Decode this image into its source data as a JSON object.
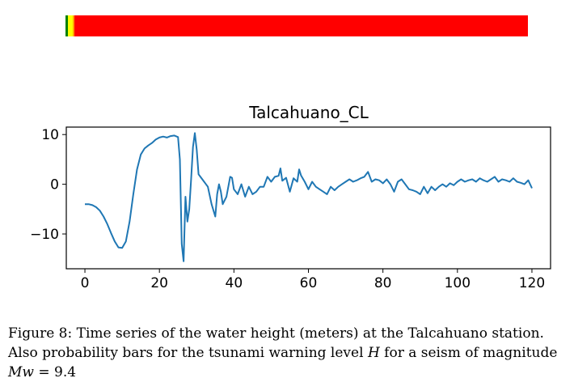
{
  "probability_bar": {
    "segments": [
      {
        "level": "green",
        "fraction": 0.006,
        "color": "#008000"
      },
      {
        "level": "yellow",
        "fraction": 0.01,
        "color": "#ffff00"
      },
      {
        "level": "orange",
        "fraction": 0.004,
        "color": "#ffa500"
      },
      {
        "level": "red",
        "fraction": 0.98,
        "color": "#ff0000"
      }
    ]
  },
  "chart_data": {
    "type": "line",
    "title": "Talcahuano_CL",
    "xlabel": "",
    "ylabel": "",
    "xlim": [
      -5,
      125
    ],
    "ylim": [
      -17,
      11.5
    ],
    "xticks": [
      0,
      20,
      40,
      60,
      80,
      100,
      120
    ],
    "yticks": [
      10,
      0,
      -10
    ],
    "ytick_labels": [
      "10",
      "0",
      "−10"
    ],
    "grid": false,
    "line_color": "#1f77b4",
    "series": [
      {
        "name": "water height",
        "x": [
          0,
          1,
          2,
          3,
          4,
          5,
          6,
          7,
          8,
          9,
          10,
          11,
          12,
          13,
          14,
          15,
          16,
          17,
          18,
          19,
          20,
          21,
          22,
          23,
          24,
          25,
          25.5,
          26,
          26.5,
          27,
          27.5,
          28,
          28.5,
          29,
          29.5,
          30,
          30.5,
          31,
          32,
          33,
          34,
          35,
          35.5,
          36,
          36.5,
          37,
          38,
          39,
          39.5,
          40,
          41,
          42,
          43,
          44,
          45,
          46,
          47,
          48,
          49,
          50,
          51,
          52,
          52.5,
          53,
          54,
          55,
          56,
          57,
          57.5,
          58,
          59,
          60,
          61,
          62,
          63,
          64,
          65,
          66,
          67,
          68,
          69,
          70,
          71,
          72,
          73,
          74,
          75,
          76,
          77,
          78,
          79,
          80,
          81,
          82,
          83,
          84,
          85,
          86,
          87,
          88,
          89,
          90,
          91,
          92,
          93,
          94,
          95,
          96,
          97,
          98,
          99,
          100,
          101,
          102,
          103,
          104,
          105,
          106,
          107,
          108,
          109,
          110,
          111,
          112,
          113,
          114,
          115,
          116,
          117,
          118,
          119,
          120
        ],
        "y": [
          -4,
          -4,
          -4.2,
          -4.6,
          -5.3,
          -6.5,
          -8,
          -9.8,
          -11.5,
          -12.7,
          -12.8,
          -11.5,
          -7.5,
          -2,
          3,
          6,
          7.2,
          7.8,
          8.3,
          9,
          9.4,
          9.6,
          9.4,
          9.7,
          9.8,
          9.5,
          5,
          -12,
          -15.5,
          -2.5,
          -7.5,
          -5,
          1,
          7.5,
          10.3,
          7,
          2,
          1.5,
          0.5,
          -0.5,
          -4,
          -6.5,
          -2,
          0,
          -1.5,
          -4,
          -2.5,
          1.5,
          1.3,
          -1,
          -2,
          0,
          -2.5,
          -0.5,
          -2,
          -1.5,
          -0.5,
          -0.5,
          1.5,
          0.5,
          1.5,
          1.7,
          3.2,
          0.7,
          1.3,
          -1.5,
          1.2,
          0.5,
          3,
          1.8,
          0.5,
          -1,
          0.5,
          -0.5,
          -1,
          -1.5,
          -2,
          -0.5,
          -1.2,
          -0.5,
          0,
          0.5,
          1,
          0.5,
          0.8,
          1.2,
          1.5,
          2.5,
          0.5,
          1,
          0.8,
          0.2,
          1,
          0,
          -1.5,
          0.5,
          1,
          0,
          -1,
          -1.2,
          -1.5,
          -2,
          -0.5,
          -1.8,
          -0.5,
          -1.2,
          -0.5,
          0,
          -0.5,
          0.2,
          -0.2,
          0.5,
          1,
          0.5,
          0.8,
          1,
          0.5,
          1.2,
          0.8,
          0.5,
          1,
          1.5,
          0.5,
          1,
          0.8,
          0.5,
          1.2,
          0.5,
          0.3,
          0,
          0.8,
          -0.8
        ]
      }
    ]
  },
  "caption": {
    "line1": "Figure 8: Time series of the water height (meters) at the Talcahuano station.",
    "line2_text": "Also probability bars for the tsunami warning level",
    "line2_var": "H",
    "line2_rest": "for a seism of magnitude",
    "line3_var": "Mw",
    "line3_rest": "= 9.4"
  }
}
